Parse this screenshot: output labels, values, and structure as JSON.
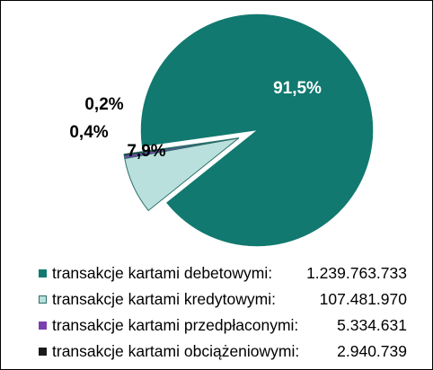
{
  "chart_data": {
    "type": "pie",
    "title": "",
    "series": [
      {
        "name": "",
        "values": [
          1239763733,
          107481970,
          5334631,
          2940739
        ]
      }
    ],
    "slices": [
      {
        "label": "transakcje kartami debetowymi:",
        "value": "1.239.763.733",
        "percent_label": "91,5%",
        "color": "#11796F",
        "exploded": false
      },
      {
        "label": "transakcje kartami kredytowymi:",
        "value": "107.481.970",
        "percent_label": "7,9%",
        "color": "#B9E0DC",
        "exploded": true
      },
      {
        "label": "transakcje kartami przedpłaconymi:",
        "value": "5.334.631",
        "percent_label": "0,4%",
        "color": "#7B3FB0",
        "exploded": true
      },
      {
        "label": "transakcje kartami obciążeniowymi:",
        "value": "2.940.739",
        "percent_label": "0,2%",
        "color": "#1A1A1A",
        "exploded": true
      }
    ],
    "legend_position": "bottom",
    "border_color": "#000000"
  }
}
